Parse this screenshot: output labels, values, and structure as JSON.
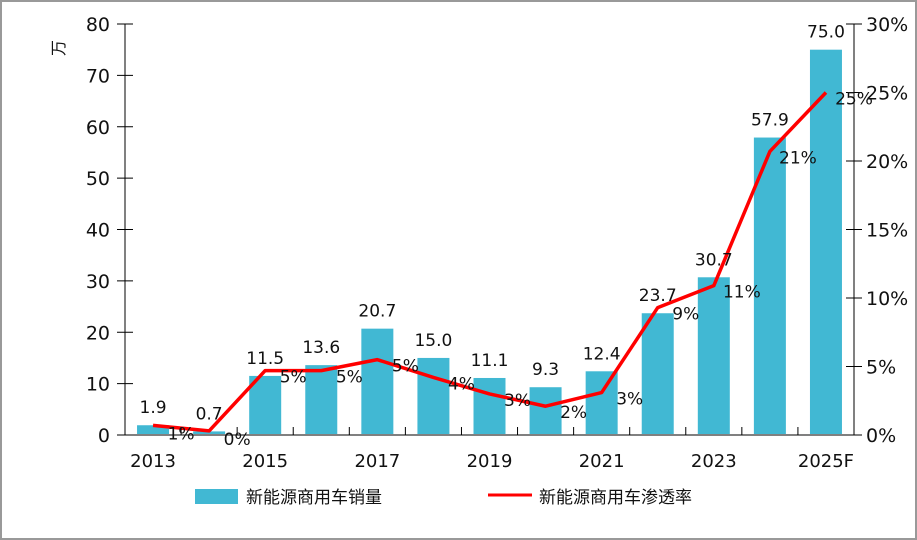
{
  "chart_data": {
    "type": "bar+line",
    "categories": [
      "2013",
      "2014",
      "2015",
      "2016",
      "2017",
      "2018",
      "2019",
      "2020",
      "2021",
      "2022",
      "2023",
      "2024",
      "2025F"
    ],
    "x_tick_labels": [
      "2013",
      "",
      "2015",
      "",
      "2017",
      "",
      "2019",
      "",
      "2021",
      "",
      "2023",
      "",
      "2025F"
    ],
    "ylabel": "万",
    "ylim": [
      0,
      80
    ],
    "yticks": [
      0,
      10,
      20,
      30,
      40,
      50,
      60,
      70,
      80
    ],
    "y2lim": [
      0,
      30
    ],
    "y2ticks": [
      "0%",
      "5%",
      "10%",
      "15%",
      "20%",
      "25%",
      "30%"
    ],
    "grid": false,
    "legend_position": "bottom",
    "series": [
      {
        "name": "新能源商用车销量",
        "type": "bar",
        "axis": "left",
        "color": "#41B8D3",
        "values": [
          1.9,
          0.7,
          11.5,
          13.6,
          20.7,
          15.0,
          11.1,
          9.3,
          12.4,
          23.7,
          30.7,
          57.9,
          75.0
        ],
        "labels": [
          "1.9",
          "0.7",
          "11.5",
          "13.6",
          "20.7",
          "15.0",
          "11.1",
          "9.3",
          "12.4",
          "23.7",
          "30.7",
          "57.9",
          "75.0"
        ]
      },
      {
        "name": "新能源商用车渗透率",
        "type": "line",
        "axis": "right",
        "color": "#FF0000",
        "values": [
          0.7,
          0.3,
          4.7,
          4.7,
          5.5,
          4.2,
          3.0,
          2.1,
          3.1,
          9.3,
          10.9,
          20.7,
          25.0
        ],
        "labels": [
          "1%",
          "0%",
          "5%",
          "5%",
          "5%",
          "4%",
          "3%",
          "2%",
          "3%",
          "9%",
          "11%",
          "21%",
          "25%"
        ]
      }
    ]
  }
}
